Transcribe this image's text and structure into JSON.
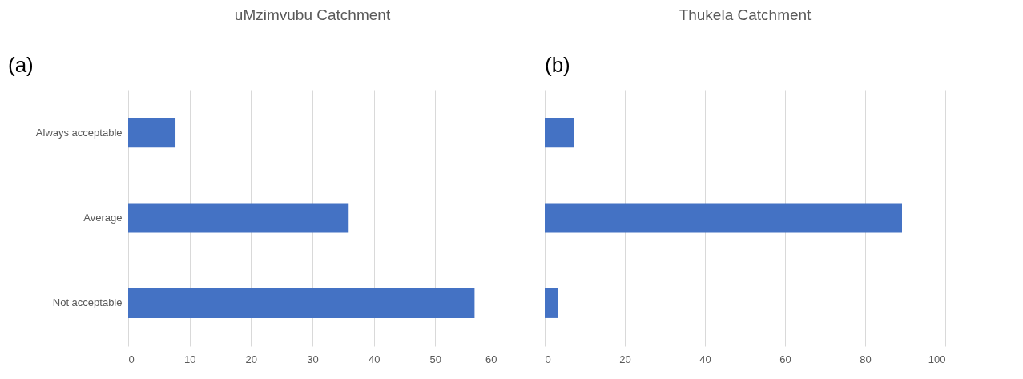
{
  "chart_data": [
    {
      "type": "bar",
      "orientation": "horizontal",
      "title": "uMzimvubu Catchment",
      "categories": [
        "Always acceptable",
        "Average",
        "Not acceptable"
      ],
      "values": [
        7.7,
        35.9,
        56.4
      ],
      "color": "#4472c4",
      "xlim": [
        0,
        60
      ],
      "xticks": [
        0,
        10,
        20,
        30,
        40,
        50,
        60
      ],
      "grid": "x",
      "annotations": [
        "(a)"
      ]
    },
    {
      "type": "bar",
      "orientation": "horizontal",
      "title": "Thukela Catchment",
      "categories": [
        null,
        null,
        null
      ],
      "values": [
        7.2,
        89.2,
        3.4
      ],
      "color": "#4472c4",
      "xlim": [
        0,
        100
      ],
      "xticks": [
        0,
        20,
        40,
        60,
        80,
        100
      ],
      "grid": "x",
      "tick_labels": "x",
      "annotations": [
        "(b)"
      ]
    }
  ]
}
